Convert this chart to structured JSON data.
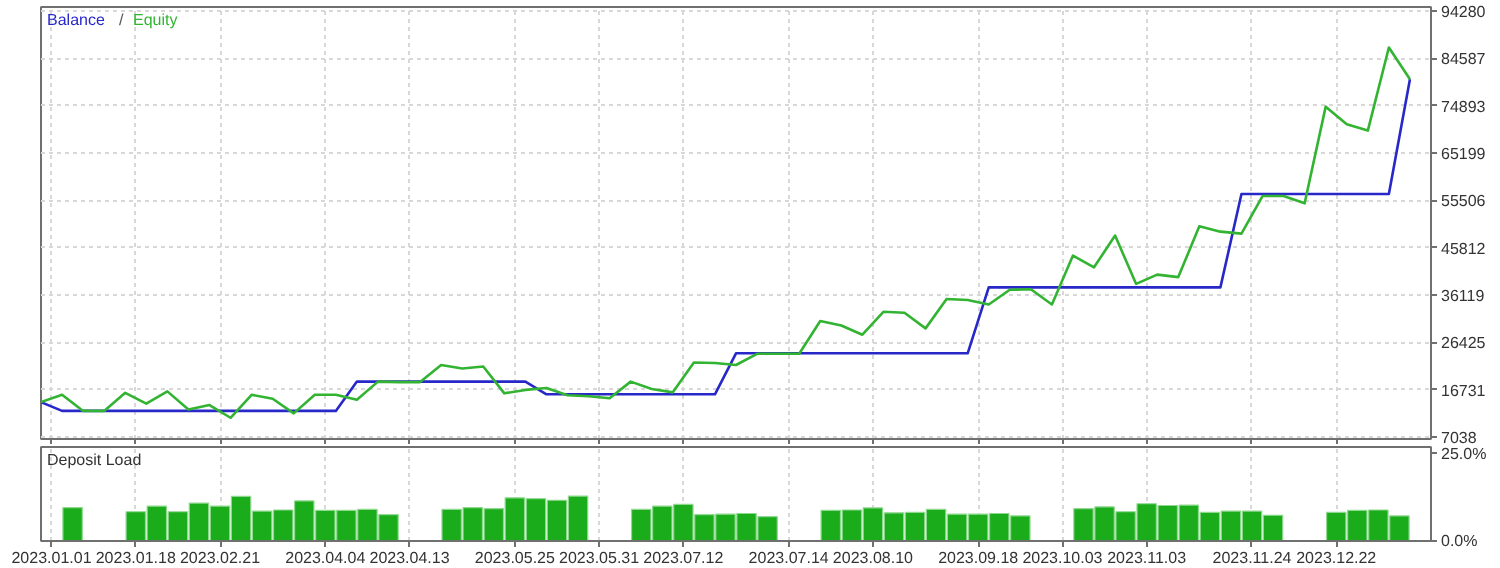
{
  "chart_data": [
    {
      "type": "line",
      "legend": "top left",
      "grid": true,
      "tick_labels": "y",
      "line_style": "solid",
      "marker": "none",
      "annotations": [
        "/"
      ],
      "categories": [
        null,
        null,
        null,
        null,
        null,
        null,
        null,
        null,
        null,
        null,
        null,
        null,
        null,
        null,
        null,
        null,
        null,
        null,
        null,
        null,
        null,
        null,
        null,
        null,
        null,
        null,
        null,
        null,
        null,
        null,
        null,
        null,
        null,
        null,
        null,
        null,
        null,
        null,
        null,
        null,
        null,
        null,
        null,
        null,
        null,
        null,
        null,
        null,
        null,
        null,
        null,
        null,
        null,
        null,
        null,
        null,
        null,
        null,
        null,
        null,
        null,
        null,
        null,
        null,
        null,
        null
      ],
      "ylim": [
        6650,
        95100
      ],
      "yticks": [
        7038,
        16731,
        26425,
        36119,
        45812,
        55506,
        65199,
        74893,
        84587,
        94280
      ],
      "series": [
        {
          "name": "Balance",
          "color": "#2828c8",
          "values": [
            14200,
            12400,
            12400,
            12400,
            12400,
            12400,
            12400,
            12400,
            12400,
            12400,
            12400,
            12400,
            12400,
            12400,
            12400,
            18400,
            18400,
            18400,
            18400,
            18400,
            18400,
            18400,
            18400,
            18400,
            15800,
            15800,
            15800,
            15800,
            15800,
            15800,
            15800,
            15800,
            15800,
            24200,
            24200,
            24200,
            24200,
            24200,
            24200,
            24200,
            24200,
            24200,
            24200,
            24200,
            24200,
            37700,
            37700,
            37700,
            37700,
            37700,
            37700,
            37700,
            37700,
            37700,
            37700,
            37700,
            37700,
            56800,
            56800,
            56800,
            56800,
            56800,
            56800,
            56800,
            56800,
            80300
          ]
        },
        {
          "name": "Equity",
          "color": "#32b432",
          "values": [
            14200,
            15700,
            12400,
            12400,
            16100,
            13900,
            16400,
            12700,
            13600,
            11000,
            15700,
            14900,
            11900,
            15700,
            15700,
            14700,
            18400,
            18300,
            18300,
            21800,
            21100,
            21500,
            16000,
            16700,
            17100,
            15600,
            15400,
            15000,
            18400,
            16900,
            16200,
            22300,
            22200,
            21800,
            24100,
            24100,
            24100,
            30800,
            29900,
            28000,
            32700,
            32500,
            29300,
            35300,
            35100,
            34200,
            37200,
            37300,
            34200,
            44200,
            41800,
            48300,
            38400,
            40300,
            39800,
            50200,
            49100,
            48700,
            56400,
            56400,
            54900,
            74700,
            71100,
            69800,
            86800,
            80300
          ]
        }
      ]
    },
    {
      "type": "bar",
      "title": "Deposit Load",
      "grid": "x",
      "categories": [
        "2023.01.01",
        null,
        null,
        null,
        "2023.01.18",
        null,
        null,
        null,
        "2023.02.21",
        null,
        null,
        null,
        null,
        "2023.04.04",
        null,
        null,
        null,
        "2023.04.13",
        null,
        null,
        null,
        null,
        "2023.05.25",
        null,
        null,
        null,
        "2023.05.31",
        null,
        null,
        null,
        "2023.07.12",
        null,
        null,
        null,
        null,
        "2023.07.14",
        null,
        null,
        null,
        "2023.08.10",
        null,
        null,
        null,
        null,
        "2023.09.18",
        null,
        null,
        null,
        "2023.10.03",
        null,
        null,
        null,
        "2023.11.03",
        null,
        null,
        null,
        null,
        "2023.11.24",
        null,
        null,
        null,
        "2023.12.22",
        null,
        null,
        null
      ],
      "ylim": [
        0,
        27
      ],
      "yticks": [
        {
          "value": 0,
          "label": "0.0%"
        },
        {
          "value": 25,
          "label": "25.0%"
        }
      ],
      "color": "#1aac1a",
      "values": [
        null,
        9.6,
        null,
        null,
        8.4,
        10.0,
        8.4,
        10.9,
        10.0,
        12.8,
        8.6,
        8.9,
        11.5,
        8.8,
        8.8,
        9.1,
        7.6,
        null,
        null,
        9.1,
        9.6,
        9.3,
        12.4,
        12.2,
        11.7,
        12.9,
        null,
        null,
        9.1,
        10.0,
        10.5,
        7.6,
        7.7,
        7.9,
        7.0,
        null,
        null,
        8.8,
        8.9,
        9.5,
        8.1,
        8.2,
        9.1,
        7.7,
        7.7,
        7.9,
        7.2,
        null,
        null,
        9.3,
        9.8,
        8.4,
        10.7,
        10.2,
        10.3,
        8.2,
        8.6,
        8.6,
        7.4,
        null,
        null,
        8.2,
        8.8,
        8.9,
        7.2
      ]
    }
  ]
}
